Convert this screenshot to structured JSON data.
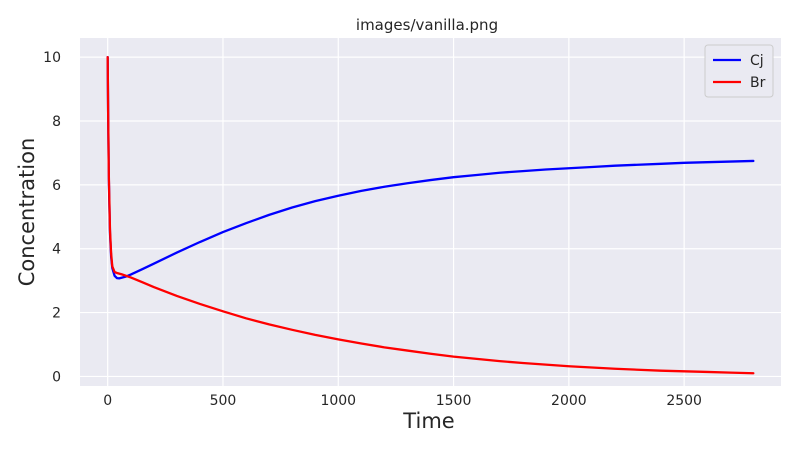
{
  "chart_data": {
    "type": "line",
    "title": "images/vanilla.png",
    "xlabel": "Time",
    "ylabel": "Concentration",
    "xlim": [
      -120,
      2920
    ],
    "ylim": [
      -0.3,
      10.6
    ],
    "xticks": [
      0,
      500,
      1000,
      1500,
      2000,
      2500
    ],
    "yticks": [
      0,
      2,
      4,
      6,
      8,
      10
    ],
    "grid": true,
    "legend_position": "top-right",
    "background": "#eaeaf2",
    "series": [
      {
        "name": "Cj",
        "color": "#0000ff",
        "x": [
          0,
          2,
          5,
          10,
          15,
          20,
          30,
          40,
          50,
          60,
          80,
          100,
          150,
          200,
          300,
          400,
          500,
          600,
          700,
          800,
          900,
          1000,
          1100,
          1200,
          1300,
          1400,
          1500,
          1600,
          1700,
          1800,
          1900,
          2000,
          2100,
          2200,
          2300,
          2400,
          2500,
          2600,
          2700,
          2800
        ],
        "y": [
          10.0,
          8.3,
          6.2,
          4.5,
          3.75,
          3.4,
          3.15,
          3.08,
          3.07,
          3.09,
          3.13,
          3.19,
          3.36,
          3.53,
          3.88,
          4.21,
          4.52,
          4.8,
          5.06,
          5.29,
          5.49,
          5.66,
          5.81,
          5.94,
          6.05,
          6.15,
          6.24,
          6.31,
          6.38,
          6.43,
          6.48,
          6.52,
          6.56,
          6.6,
          6.63,
          6.66,
          6.69,
          6.71,
          6.73,
          6.75
        ]
      },
      {
        "name": "Br",
        "color": "#ff0000",
        "x": [
          0,
          2,
          5,
          10,
          15,
          20,
          30,
          40,
          50,
          60,
          80,
          100,
          150,
          200,
          300,
          400,
          500,
          600,
          700,
          800,
          900,
          1000,
          1100,
          1200,
          1300,
          1400,
          1500,
          1600,
          1700,
          1800,
          1900,
          2000,
          2100,
          2200,
          2300,
          2400,
          2500,
          2600,
          2700,
          2800
        ],
        "y": [
          10.0,
          8.3,
          6.3,
          4.6,
          3.85,
          3.45,
          3.27,
          3.24,
          3.22,
          3.2,
          3.15,
          3.1,
          2.95,
          2.8,
          2.52,
          2.27,
          2.04,
          1.82,
          1.63,
          1.46,
          1.3,
          1.16,
          1.03,
          0.91,
          0.81,
          0.71,
          0.62,
          0.55,
          0.48,
          0.42,
          0.37,
          0.32,
          0.28,
          0.24,
          0.21,
          0.18,
          0.16,
          0.14,
          0.12,
          0.1
        ]
      }
    ]
  }
}
